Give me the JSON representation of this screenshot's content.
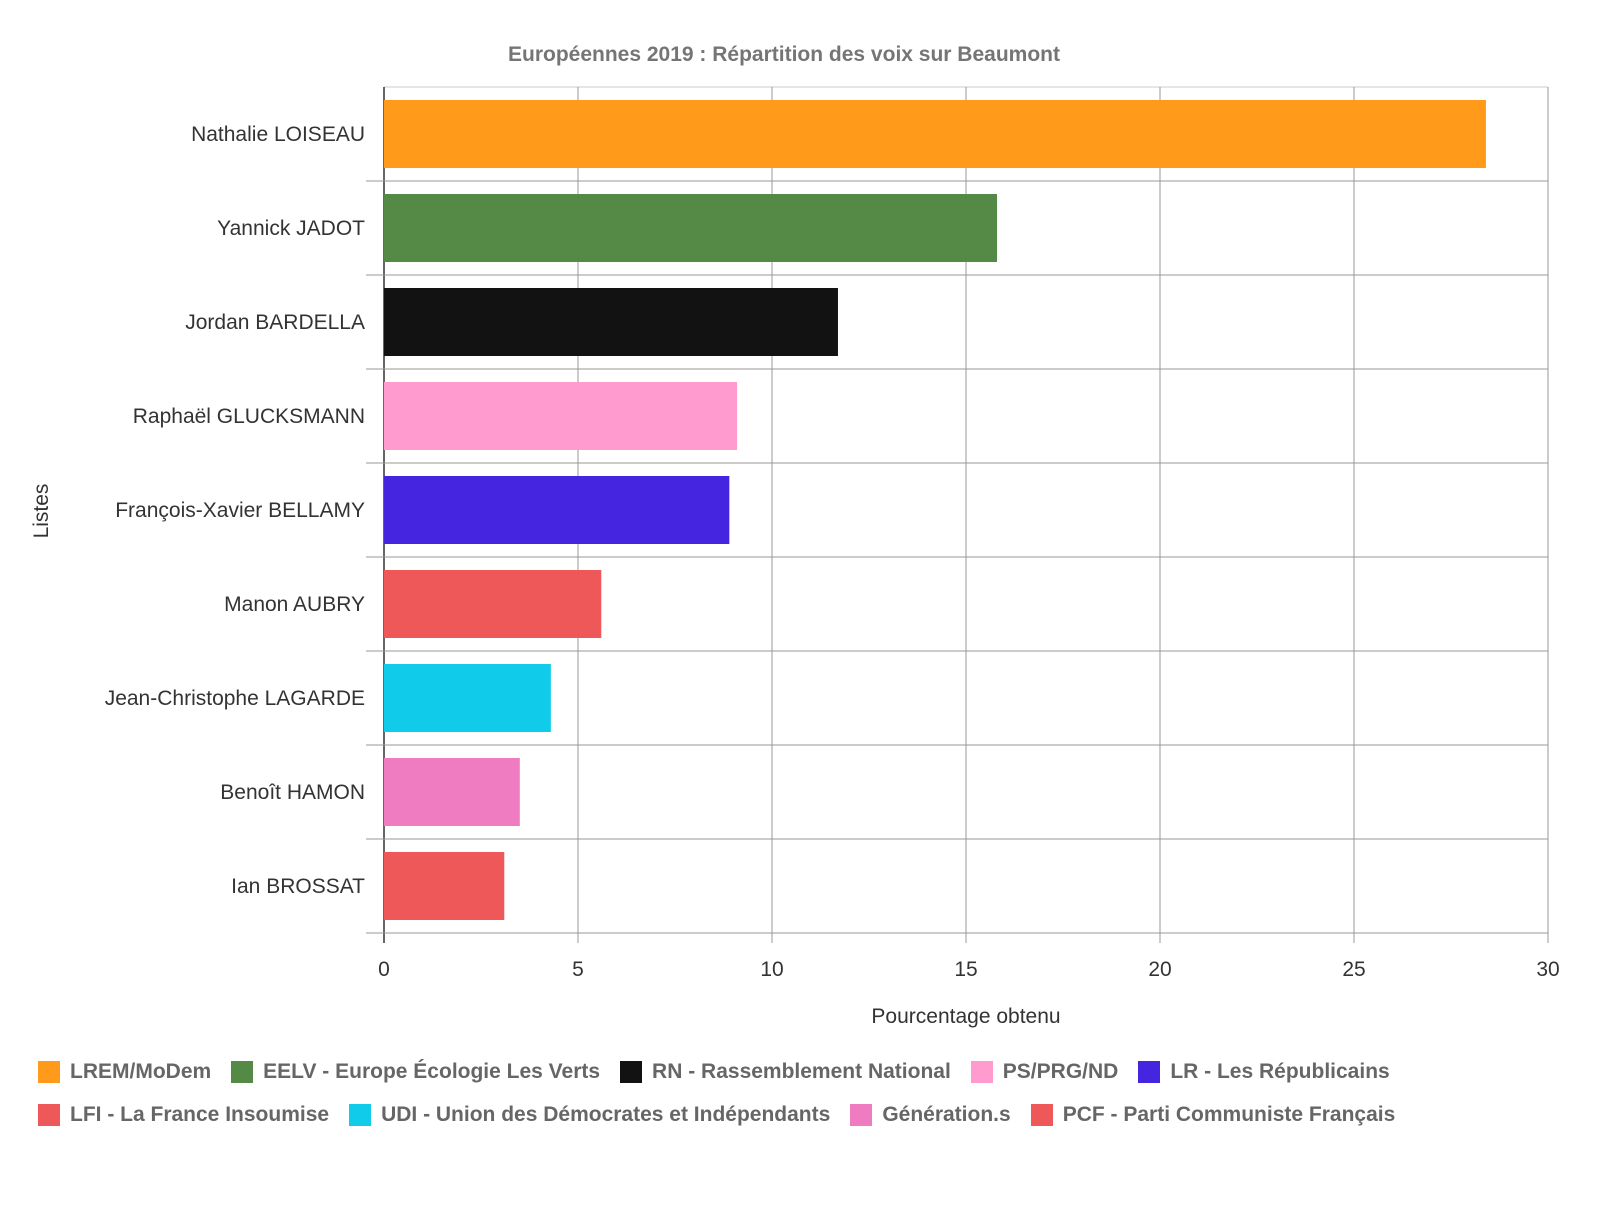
{
  "chart_data": {
    "type": "bar",
    "orientation": "horizontal",
    "title": "Européennes 2019 : Répartition des voix sur Beaumont",
    "xlabel": "Pourcentage obtenu",
    "ylabel": "Listes",
    "xlim": [
      0,
      30
    ],
    "xticks": [
      "0",
      "5",
      "10",
      "15",
      "20",
      "25",
      "30"
    ],
    "grid": true,
    "legend_position": "bottom",
    "categories": [
      "Nathalie LOISEAU",
      "Yannick JADOT",
      "Jordan BARDELLA",
      "Raphaël GLUCKSMANN",
      "François-Xavier BELLAMY",
      "Manon AUBRY",
      "Jean-Christophe LAGARDE",
      "Benoît HAMON",
      "Ian BROSSAT"
    ],
    "values": [
      28.4,
      15.8,
      11.7,
      9.1,
      8.9,
      5.6,
      4.3,
      3.5,
      3.1
    ],
    "colors": [
      "#ff9a1a",
      "#548a46",
      "#121212",
      "#ff9bcf",
      "#4525e0",
      "#ef5858",
      "#10cbea",
      "#ef7bc0",
      "#ef5858"
    ],
    "legend": [
      {
        "label": "LREM/MoDem",
        "color": "#ff9a1a"
      },
      {
        "label": "EELV - Europe Écologie Les Verts",
        "color": "#548a46"
      },
      {
        "label": "RN - Rassemblement National",
        "color": "#121212"
      },
      {
        "label": "PS/PRG/ND",
        "color": "#ff9bcf"
      },
      {
        "label": "LR - Les Républicains",
        "color": "#4525e0"
      },
      {
        "label": "LFI - La France Insoumise",
        "color": "#ef5858"
      },
      {
        "label": "UDI - Union des Démocrates et Indépendants",
        "color": "#10cbea"
      },
      {
        "label": "Génération.s",
        "color": "#ef7bc0"
      },
      {
        "label": "PCF - Parti Communiste Français",
        "color": "#ef5858"
      }
    ]
  }
}
